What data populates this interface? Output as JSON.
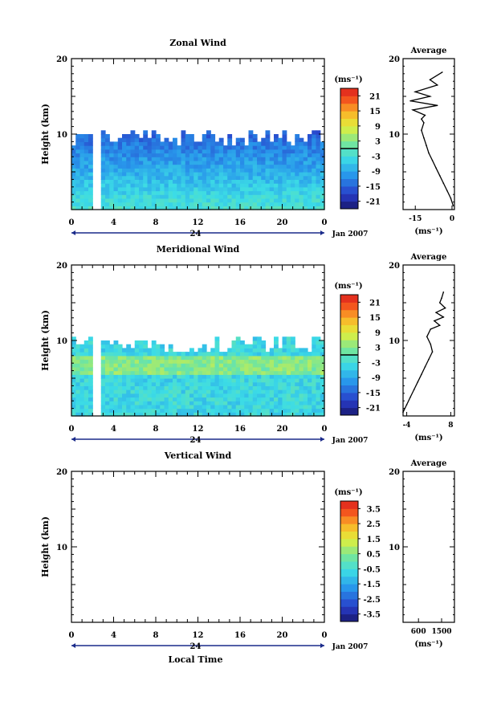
{
  "chart_data": [
    {
      "type": "heatmap",
      "title": "Zonal Wind",
      "xlabel": "",
      "ylabel": "Height (km)",
      "x_ticks": [
        "0",
        "4",
        "8",
        "12",
        "16",
        "20",
        "0"
      ],
      "x_range_hours": [
        0,
        24
      ],
      "y_ticks": [
        "20",
        "10"
      ],
      "ylim": [
        0,
        20
      ],
      "date_day": "24",
      "date_label": "Jan 2007",
      "colorbar": {
        "unit": "(ms⁻¹)",
        "tick_labels": [
          "21",
          "15",
          "9",
          "3",
          "-3",
          "-9",
          "-15",
          "-21"
        ],
        "range": [
          -24,
          24
        ],
        "zero_line": true
      },
      "data_height_range_km": [
        0,
        11
      ],
      "missing_time_range_hours": [
        2.2,
        2.8
      ],
      "profile": {
        "title": "Average",
        "unit": "(ms⁻¹)",
        "x_tick_labels": [
          "-15",
          "0"
        ],
        "xlim": [
          -20,
          1
        ],
        "y_tick_labels": [
          "20",
          "10"
        ],
        "points": [
          [
            0.5,
            0.5
          ],
          [
            -0.5,
            1.5
          ],
          [
            -2,
            2.5
          ],
          [
            -3.5,
            3.5
          ],
          [
            -5,
            4.5
          ],
          [
            -6.5,
            5.5
          ],
          [
            -8,
            6.5
          ],
          [
            -9.5,
            7.5
          ],
          [
            -10.5,
            8.5
          ],
          [
            -11.5,
            9.5
          ],
          [
            -12.5,
            10.5
          ],
          [
            -11.5,
            11.5
          ],
          [
            -12.5,
            12
          ],
          [
            -11,
            12.5
          ],
          [
            -16,
            13.2
          ],
          [
            -6,
            13.8
          ],
          [
            -17,
            14.4
          ],
          [
            -9,
            15
          ],
          [
            -15,
            15.6
          ],
          [
            -6,
            16.5
          ],
          [
            -9,
            17.2
          ],
          [
            -4,
            18.2
          ]
        ]
      }
    },
    {
      "type": "heatmap",
      "title": "Meridional Wind",
      "xlabel": "",
      "ylabel": "Height (km)",
      "x_ticks": [
        "0",
        "4",
        "8",
        "12",
        "16",
        "20",
        "0"
      ],
      "x_range_hours": [
        0,
        24
      ],
      "y_ticks": [
        "20",
        "10"
      ],
      "ylim": [
        0,
        20
      ],
      "date_day": "24",
      "date_label": "Jan 2007",
      "colorbar": {
        "unit": "(ms⁻¹)",
        "tick_labels": [
          "21",
          "15",
          "9",
          "3",
          "-3",
          "-9",
          "-15",
          "-21"
        ],
        "range": [
          -24,
          24
        ],
        "zero_line": true
      },
      "data_height_range_km": [
        0,
        11
      ],
      "missing_time_range_hours": [
        2.2,
        2.8
      ],
      "profile": {
        "title": "Average",
        "unit": "(ms⁻¹)",
        "x_tick_labels": [
          "-4",
          "8"
        ],
        "xlim": [
          -5,
          9
        ],
        "y_tick_labels": [
          "20",
          "10"
        ],
        "points": [
          [
            -5,
            0.5
          ],
          [
            -4,
            1.5
          ],
          [
            -3,
            2.5
          ],
          [
            -2,
            3.5
          ],
          [
            -1,
            4.5
          ],
          [
            0,
            5.5
          ],
          [
            1,
            6.5
          ],
          [
            2,
            7.5
          ],
          [
            3,
            8.5
          ],
          [
            2.5,
            9.5
          ],
          [
            1.5,
            10.5
          ],
          [
            2.5,
            11.5
          ],
          [
            5,
            12
          ],
          [
            3.5,
            12.6
          ],
          [
            6,
            13.1
          ],
          [
            4,
            13.7
          ],
          [
            6.5,
            14.3
          ],
          [
            5,
            15
          ],
          [
            5.5,
            15.6
          ],
          [
            6,
            16.4
          ]
        ]
      }
    },
    {
      "type": "heatmap",
      "title": "Vertical Wind",
      "xlabel": "Local Time",
      "ylabel": "Height (km)",
      "x_ticks": [
        "0",
        "4",
        "8",
        "12",
        "16",
        "20",
        "0"
      ],
      "x_range_hours": [
        0,
        24
      ],
      "y_ticks": [
        "20",
        "10"
      ],
      "ylim": [
        0,
        20
      ],
      "date_day": "24",
      "date_label": "Jan 2007",
      "colorbar": {
        "unit": "(ms⁻¹)",
        "tick_labels": [
          "3.5",
          "2.5",
          "1.5",
          "0.5",
          "-0.5",
          "-1.5",
          "-2.5",
          "-3.5"
        ],
        "range": [
          -4,
          4
        ],
        "zero_line": false
      },
      "data_height_range_km": [],
      "missing_time_range_hours": [],
      "profile": {
        "title": "Average",
        "unit": "(ms⁻¹)",
        "x_tick_labels": [
          "600",
          "1500"
        ],
        "xlim": [
          0,
          2000
        ],
        "y_tick_labels": [
          "20",
          "10"
        ],
        "points": []
      }
    }
  ]
}
